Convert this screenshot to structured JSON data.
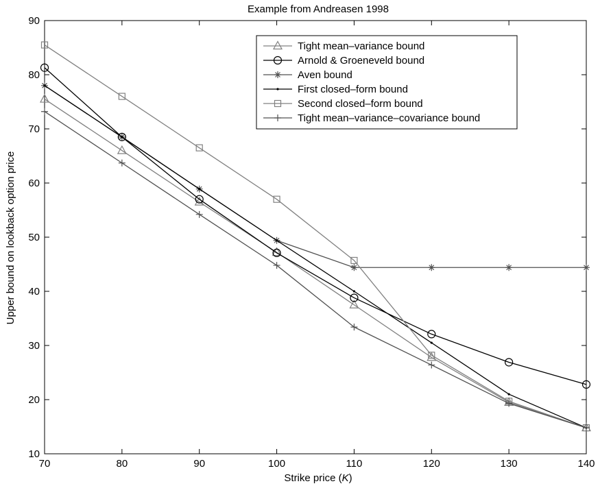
{
  "chart_data": {
    "type": "line",
    "title": "Example from Andreasen 1998",
    "xlabel": "Strike price (K)",
    "ylabel": "Upper bound on lookback option price",
    "xlim": [
      70,
      140
    ],
    "ylim": [
      10,
      90
    ],
    "x_ticks": [
      70,
      80,
      90,
      100,
      110,
      120,
      130,
      140
    ],
    "y_ticks": [
      10,
      20,
      30,
      40,
      50,
      60,
      70,
      80,
      90
    ],
    "grid": false,
    "legend_position": "top-right",
    "x": [
      70,
      80,
      90,
      100,
      110,
      120,
      130,
      140
    ],
    "series": [
      {
        "name": "Tight mean–variance bound",
        "marker": "triangle",
        "color": "#808080",
        "values": [
          75.5,
          66.0,
          56.5,
          47.2,
          37.5,
          27.8,
          19.5,
          14.8
        ]
      },
      {
        "name": "Arnold & Groeneveld bound",
        "marker": "circle",
        "color": "#000000",
        "values": [
          81.3,
          68.5,
          57.0,
          47.1,
          38.8,
          32.1,
          26.9,
          22.8
        ]
      },
      {
        "name": "Aven bound",
        "marker": "asterisk",
        "color": "#505050",
        "values": [
          78.0,
          68.5,
          58.9,
          49.4,
          44.4,
          44.4,
          44.4,
          44.4
        ]
      },
      {
        "name": "First closed–form bound",
        "marker": "dot",
        "color": "#000000",
        "values": [
          78.0,
          68.5,
          58.9,
          49.4,
          40.0,
          30.5,
          21.0,
          14.8
        ]
      },
      {
        "name": "Second closed–form bound",
        "marker": "square",
        "color": "#808080",
        "values": [
          85.5,
          76.0,
          66.5,
          57.0,
          45.7,
          28.2,
          19.7,
          14.8
        ]
      },
      {
        "name": "Tight mean–variance–covariance bound",
        "marker": "plus",
        "color": "#505050",
        "values": [
          73.2,
          63.7,
          54.2,
          44.8,
          33.4,
          26.4,
          19.3,
          14.8
        ]
      }
    ]
  }
}
